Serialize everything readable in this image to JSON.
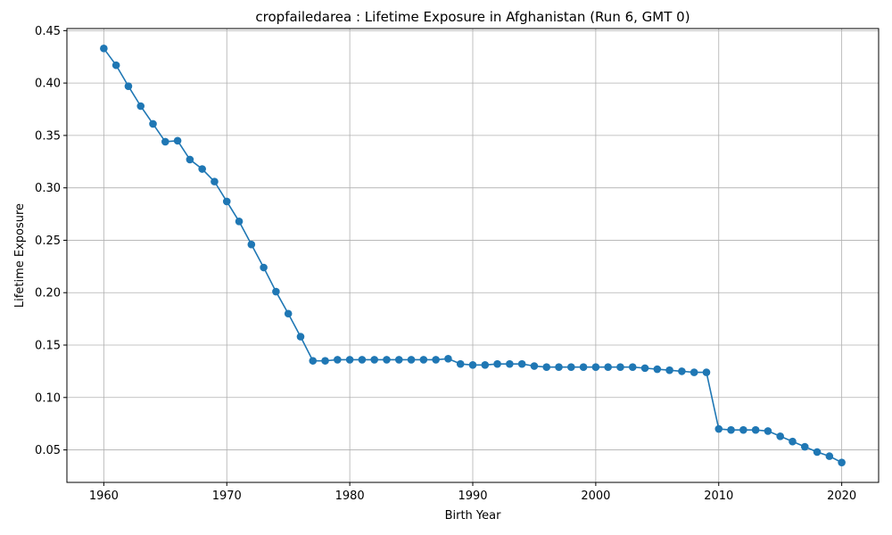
{
  "chart_data": {
    "type": "line",
    "title": "cropfailedarea : Lifetime Exposure in Afghanistan (Run 6, GMT 0)",
    "xlabel": "Birth Year",
    "ylabel": "Lifetime Exposure",
    "xlim": [
      1957,
      2023
    ],
    "ylim": [
      0.019,
      0.452
    ],
    "xticks": [
      1960,
      1970,
      1980,
      1990,
      2000,
      2010,
      2020
    ],
    "yticks": [
      0.05,
      0.1,
      0.15,
      0.2,
      0.25,
      0.3,
      0.35,
      0.4,
      0.45
    ],
    "ytick_labels": [
      "0.05",
      "0.10",
      "0.15",
      "0.20",
      "0.25",
      "0.30",
      "0.35",
      "0.40",
      "0.45"
    ],
    "grid": true,
    "color": "#1f77b4",
    "marker": "circle",
    "x": [
      1960,
      1961,
      1962,
      1963,
      1964,
      1965,
      1966,
      1967,
      1968,
      1969,
      1970,
      1971,
      1972,
      1973,
      1974,
      1975,
      1976,
      1977,
      1978,
      1979,
      1980,
      1981,
      1982,
      1983,
      1984,
      1985,
      1986,
      1987,
      1988,
      1989,
      1990,
      1991,
      1992,
      1993,
      1994,
      1995,
      1996,
      1997,
      1998,
      1999,
      2000,
      2001,
      2002,
      2003,
      2004,
      2005,
      2006,
      2007,
      2008,
      2009,
      2010,
      2011,
      2012,
      2013,
      2014,
      2015,
      2016,
      2017,
      2018,
      2019,
      2020
    ],
    "y": [
      0.433,
      0.417,
      0.397,
      0.378,
      0.361,
      0.344,
      0.345,
      0.327,
      0.318,
      0.306,
      0.287,
      0.268,
      0.246,
      0.224,
      0.201,
      0.18,
      0.158,
      0.135,
      0.135,
      0.136,
      0.136,
      0.136,
      0.136,
      0.136,
      0.136,
      0.136,
      0.136,
      0.136,
      0.137,
      0.132,
      0.131,
      0.131,
      0.132,
      0.132,
      0.132,
      0.13,
      0.129,
      0.129,
      0.129,
      0.129,
      0.129,
      0.129,
      0.129,
      0.129,
      0.128,
      0.127,
      0.126,
      0.125,
      0.124,
      0.124,
      0.07,
      0.069,
      0.069,
      0.069,
      0.068,
      0.063,
      0.058,
      0.053,
      0.048,
      0.044,
      0.038
    ]
  }
}
